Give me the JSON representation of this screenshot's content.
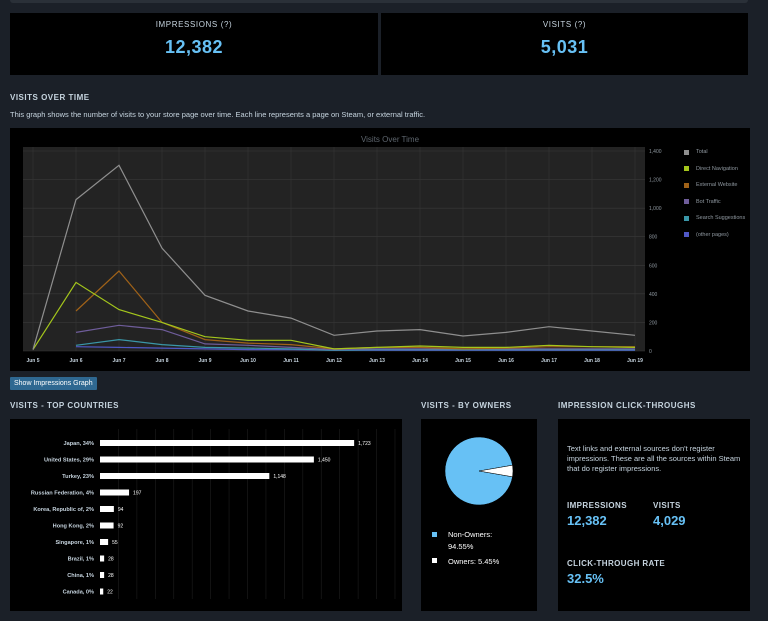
{
  "header": {
    "impressions_label": "IMPRESSIONS (?)",
    "impressions_value": "12,382",
    "visits_label": "VISITS (?)",
    "visits_value": "5,031"
  },
  "visits_over_time": {
    "section_title": "VISITS OVER TIME",
    "description": "This graph shows the number of visits to your store page over time. Each line represents a page on Steam, or external traffic.",
    "button_label": "Show Impressions Graph"
  },
  "colors": {
    "accent_blue": "#67c1f5",
    "panel_bg": "#000000",
    "page_bg": "#1b2028",
    "button_bg": "#2f6891"
  },
  "chart_data": [
    {
      "type": "line",
      "title": "Visits Over Time",
      "x": [
        "Jun 5",
        "Jun 6",
        "Jun 7",
        "Jun 8",
        "Jun 9",
        "Jun 10",
        "Jun 11",
        "Jun 12",
        "Jun 13",
        "Jun 14",
        "Jun 15",
        "Jun 16",
        "Jun 17",
        "Jun 18",
        "Jun 19"
      ],
      "ylim": [
        0,
        1400
      ],
      "yticks": [
        0,
        200,
        400,
        600,
        800,
        1000,
        1200,
        1400
      ],
      "ytick_labels": [
        "0",
        "200",
        "400",
        "600",
        "800",
        "1,000",
        "1,200",
        "1,400"
      ],
      "grid": true,
      "legend_position": "right",
      "series": [
        {
          "name": "Total",
          "color": "#8f8f8f",
          "values": [
            10,
            1060,
            1300,
            720,
            390,
            280,
            230,
            110,
            140,
            150,
            105,
            130,
            170,
            140,
            110
          ]
        },
        {
          "name": "Direct Navigation",
          "color": "#a4c61c",
          "values": [
            10,
            480,
            290,
            200,
            100,
            75,
            75,
            15,
            25,
            35,
            25,
            25,
            40,
            30,
            25
          ]
        },
        {
          "name": "External Website",
          "color": "#a06218",
          "values": [
            null,
            280,
            560,
            200,
            80,
            55,
            45,
            15,
            25,
            25,
            15,
            20,
            30,
            30,
            30
          ]
        },
        {
          "name": "Bot Traffic",
          "color": "#6f5d9b",
          "values": [
            null,
            130,
            180,
            150,
            50,
            40,
            25,
            10,
            15,
            15,
            15,
            15,
            15,
            15,
            15
          ]
        },
        {
          "name": "Search Suggestions",
          "color": "#3a97a8",
          "values": [
            null,
            40,
            80,
            45,
            25,
            20,
            15,
            5,
            10,
            10,
            10,
            10,
            10,
            10,
            10
          ]
        },
        {
          "name": "(other pages)",
          "color": "#5058c6",
          "values": [
            null,
            30,
            25,
            20,
            15,
            10,
            10,
            5,
            5,
            5,
            5,
            5,
            5,
            5,
            5
          ]
        }
      ]
    },
    {
      "type": "bar",
      "title": "VISITS - TOP COUNTRIES",
      "orientation": "horizontal",
      "categories": [
        "Japan, 34%",
        "United States, 29%",
        "Turkey, 23%",
        "Russian Federation, 4%",
        "Korea, Republic of, 2%",
        "Hong Kong, 2%",
        "Singapore, 1%",
        "Brazil, 1%",
        "China, 1%",
        "Canada, 0%"
      ],
      "values": [
        1723,
        1450,
        1148,
        197,
        94,
        92,
        55,
        28,
        28,
        22
      ],
      "value_labels": [
        "1,723",
        "1,450",
        "1,148",
        "197",
        "94",
        "92",
        "55",
        "28",
        "28",
        "22"
      ],
      "xlim": [
        0,
        2000
      ],
      "grid": true
    },
    {
      "type": "pie",
      "title": "VISITS - BY OWNERS",
      "categories": [
        "Non-Owners: 94.55%",
        "Owners: 5.45%"
      ],
      "values": [
        94.55,
        5.45
      ],
      "colors": [
        "#67c1f5",
        "#ffffff"
      ]
    }
  ],
  "click_throughs": {
    "section_title": "IMPRESSION CLICK-THROUGHS",
    "description": "Text links and external sources don't register impressions. These are all the sources within Steam that do register impressions.",
    "impressions_label": "IMPRESSIONS",
    "impressions_value": "12,382",
    "visits_label": "VISITS",
    "visits_value": "4,029",
    "ctr_label": "CLICK-THROUGH RATE",
    "ctr_value": "32.5%"
  }
}
